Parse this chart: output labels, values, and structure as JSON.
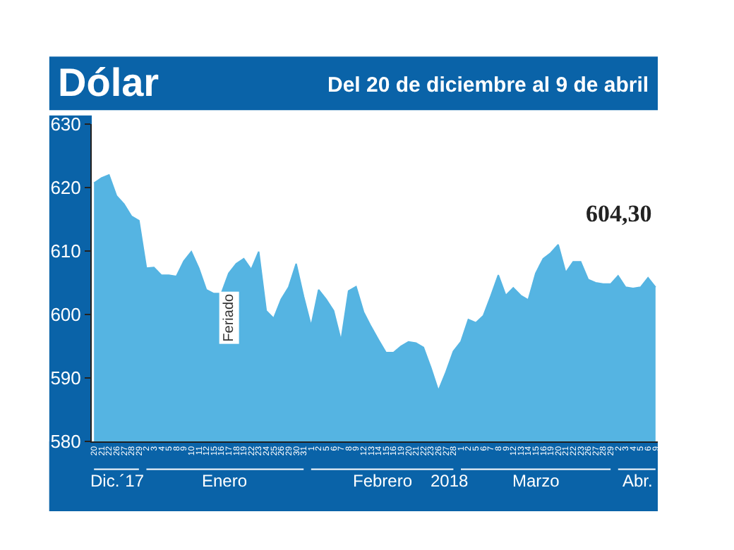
{
  "chart_data": {
    "type": "area",
    "title": "Dólar",
    "subtitle": "Del 20 de diciembre al 9 de abril",
    "categories": [
      "20",
      "21",
      "22",
      "26",
      "27",
      "28",
      "29",
      "2",
      "3",
      "4",
      "5",
      "8",
      "9",
      "10",
      "11",
      "12",
      "15",
      "16",
      "17",
      "18",
      "19",
      "22",
      "23",
      "24",
      "25",
      "26",
      "29",
      "30",
      "31",
      "1",
      "2",
      "5",
      "6",
      "7",
      "8",
      "9",
      "12",
      "13",
      "14",
      "15",
      "16",
      "19",
      "20",
      "21",
      "22",
      "23",
      "26",
      "27",
      "28",
      "1",
      "2",
      "5",
      "6",
      "7",
      "8",
      "9",
      "12",
      "13",
      "14",
      "15",
      "16",
      "19",
      "20",
      "21",
      "22",
      "23",
      "26",
      "27",
      "28",
      "29",
      "2",
      "3",
      "4",
      "5",
      "6",
      "9"
    ],
    "series": [
      {
        "color": "#55b4e2",
        "values": [
          620.7,
          621.5,
          622,
          618.7,
          617.4,
          615.5,
          614.8,
          607.3,
          607.4,
          606.2,
          606.2,
          606,
          608.4,
          609.9,
          607.3,
          603.9,
          603.3,
          603.3,
          606.5,
          608,
          608.8,
          607.1,
          609.9,
          600.6,
          599.4,
          602.4,
          604.3,
          608,
          602.8,
          598.2,
          603.9,
          602.4,
          600.6,
          595.9,
          603.7,
          604.4,
          600.4,
          598.1,
          596,
          594,
          594,
          595,
          595.7,
          595.5,
          594.8,
          591.6,
          588,
          590.9,
          594.2,
          595.7,
          599.2,
          598.7,
          599.8,
          602.9,
          606.2,
          603,
          604.2,
          603,
          602.3,
          606.5,
          608.8,
          609.7,
          611,
          606.6,
          608.3,
          608.3,
          605.5,
          605,
          604.8,
          604.8,
          606.1,
          604.3,
          604.1,
          604.3,
          605.8,
          604.3
        ],
        "value_labels": [
          null,
          null,
          null,
          null,
          null,
          null,
          null,
          null,
          null,
          null,
          null,
          null,
          null,
          null,
          null,
          null,
          null,
          null,
          null,
          null,
          null,
          null,
          null,
          null,
          null,
          null,
          null,
          null,
          null,
          null,
          null,
          null,
          null,
          null,
          null,
          null,
          null,
          null,
          null,
          null,
          null,
          null,
          null,
          null,
          null,
          null,
          null,
          null,
          null,
          null,
          null,
          null,
          null,
          null,
          null,
          null,
          null,
          null,
          null,
          null,
          null,
          null,
          null,
          null,
          null,
          null,
          null,
          null,
          null,
          null,
          null,
          null,
          null,
          null,
          null,
          "604,30"
        ]
      }
    ],
    "ylim": [
      580,
      630
    ],
    "yticks": [
      580,
      590,
      600,
      610,
      620,
      630
    ],
    "annotations": [
      "Feriado",
      "Dic.´17",
      "Enero",
      "Febrero",
      "2018",
      "Marzo",
      "Abr."
    ]
  }
}
